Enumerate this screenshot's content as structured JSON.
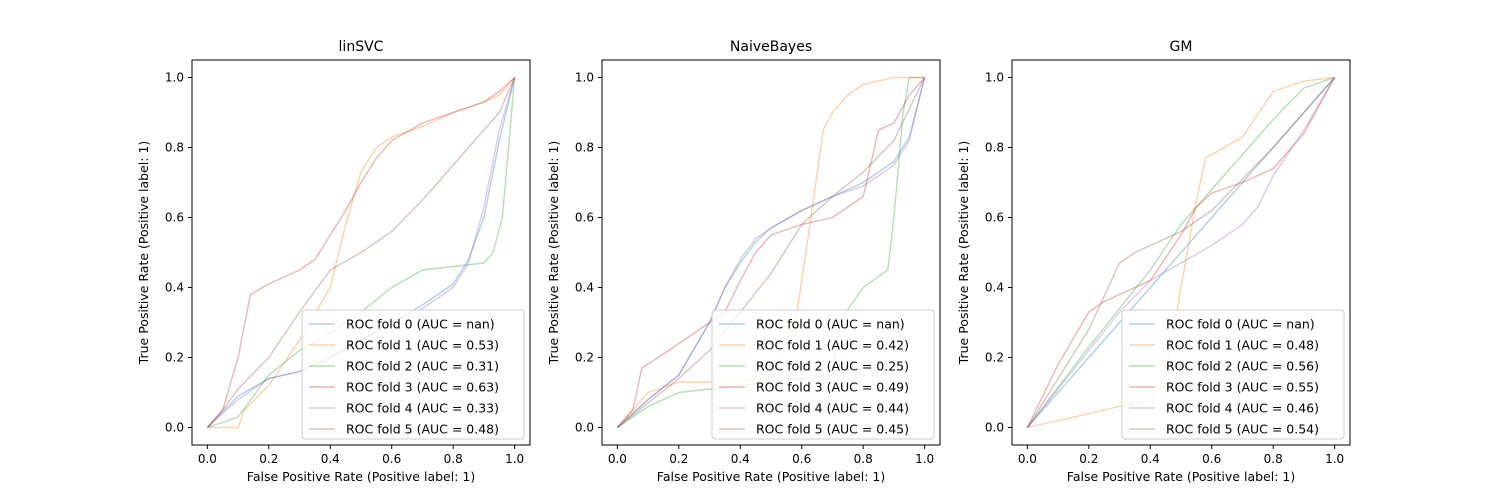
{
  "chart_data": [
    {
      "type": "line",
      "title": "linSVC",
      "xlabel": "False Positive Rate (Positive label: 1)",
      "ylabel": "True Positive Rate (Positive label: 1)",
      "xlim": [
        -0.05,
        1.05
      ],
      "ylim": [
        -0.05,
        1.05
      ],
      "xticks": [
        "0.0",
        "0.2",
        "0.4",
        "0.6",
        "0.8",
        "1.0"
      ],
      "yticks": [
        "0.0",
        "0.2",
        "0.4",
        "0.6",
        "0.8",
        "1.0"
      ],
      "grid": false,
      "legend": "lower right",
      "series": [
        {
          "name": "ROC fold 0 (AUC = nan)",
          "color": "#1f77b4",
          "x": [
            0,
            0.1,
            0.2,
            0.3,
            0.4,
            0.5,
            0.6,
            0.7,
            0.8,
            0.85,
            0.9,
            0.95,
            1.0
          ],
          "y": [
            0,
            0.09,
            0.14,
            0.16,
            0.2,
            0.25,
            0.3,
            0.35,
            0.41,
            0.48,
            0.6,
            0.82,
            1.0
          ]
        },
        {
          "name": "ROC fold 1 (AUC = 0.53)",
          "color": "#ff7f0e",
          "x": [
            0,
            0.1,
            0.12,
            0.2,
            0.3,
            0.4,
            0.45,
            0.5,
            0.55,
            0.6,
            0.7,
            0.8,
            0.9,
            0.95,
            1.0
          ],
          "y": [
            0,
            0.0,
            0.05,
            0.12,
            0.25,
            0.4,
            0.58,
            0.73,
            0.8,
            0.83,
            0.86,
            0.9,
            0.93,
            0.95,
            1.0
          ]
        },
        {
          "name": "ROC fold 2 (AUC = 0.31)",
          "color": "#2ca02c",
          "x": [
            0,
            0.1,
            0.2,
            0.3,
            0.4,
            0.5,
            0.6,
            0.7,
            0.8,
            0.9,
            0.93,
            0.96,
            0.98,
            1.0
          ],
          "y": [
            0,
            0.03,
            0.15,
            0.22,
            0.27,
            0.33,
            0.4,
            0.45,
            0.46,
            0.47,
            0.5,
            0.6,
            0.8,
            1.0
          ]
        },
        {
          "name": "ROC fold 3 (AUC = 0.63)",
          "color": "#d62728",
          "x": [
            0,
            0.05,
            0.1,
            0.14,
            0.2,
            0.3,
            0.35,
            0.4,
            0.45,
            0.5,
            0.55,
            0.6,
            0.7,
            0.8,
            0.9,
            0.95,
            1.0
          ],
          "y": [
            0,
            0.05,
            0.2,
            0.38,
            0.41,
            0.45,
            0.48,
            0.55,
            0.62,
            0.7,
            0.77,
            0.82,
            0.87,
            0.9,
            0.93,
            0.96,
            1.0
          ]
        },
        {
          "name": "ROC fold 4 (AUC = 0.33)",
          "color": "#9467bd",
          "x": [
            0,
            0.1,
            0.2,
            0.3,
            0.4,
            0.5,
            0.6,
            0.7,
            0.8,
            0.85,
            0.9,
            0.95,
            1.0
          ],
          "y": [
            0,
            0.08,
            0.14,
            0.16,
            0.2,
            0.25,
            0.3,
            0.34,
            0.4,
            0.47,
            0.63,
            0.85,
            1.0
          ]
        },
        {
          "name": "ROC fold 5 (AUC = 0.48)",
          "color": "#8c564b",
          "x": [
            0,
            0.05,
            0.1,
            0.2,
            0.3,
            0.4,
            0.5,
            0.6,
            0.7,
            0.8,
            0.9,
            0.95,
            1.0
          ],
          "y": [
            0,
            0.05,
            0.11,
            0.2,
            0.33,
            0.45,
            0.5,
            0.56,
            0.65,
            0.75,
            0.85,
            0.9,
            1.0
          ]
        }
      ]
    },
    {
      "type": "line",
      "title": "NaiveBayes",
      "xlabel": "False Positive Rate (Positive label: 1)",
      "ylabel": "True Positive Rate (Positive label: 1)",
      "xlim": [
        -0.05,
        1.05
      ],
      "ylim": [
        -0.05,
        1.05
      ],
      "xticks": [
        "0.0",
        "0.2",
        "0.4",
        "0.6",
        "0.8",
        "1.0"
      ],
      "yticks": [
        "0.0",
        "0.2",
        "0.4",
        "0.6",
        "0.8",
        "1.0"
      ],
      "grid": false,
      "legend": "lower right",
      "series": [
        {
          "name": "ROC fold 0 (AUC = nan)",
          "color": "#1f77b4",
          "x": [
            0,
            0.1,
            0.2,
            0.3,
            0.35,
            0.4,
            0.45,
            0.5,
            0.6,
            0.7,
            0.8,
            0.9,
            0.95,
            1.0
          ],
          "y": [
            0,
            0.08,
            0.15,
            0.3,
            0.4,
            0.47,
            0.53,
            0.57,
            0.62,
            0.66,
            0.7,
            0.76,
            0.83,
            1.0
          ]
        },
        {
          "name": "ROC fold 1 (AUC = 0.42)",
          "color": "#ff7f0e",
          "x": [
            0,
            0.1,
            0.2,
            0.3,
            0.5,
            0.58,
            0.63,
            0.67,
            0.7,
            0.75,
            0.8,
            0.85,
            0.9,
            1.0
          ],
          "y": [
            0,
            0.1,
            0.13,
            0.13,
            0.14,
            0.3,
            0.6,
            0.85,
            0.9,
            0.95,
            0.98,
            0.99,
            1.0,
            1.0
          ]
        },
        {
          "name": "ROC fold 2 (AUC = 0.25)",
          "color": "#2ca02c",
          "x": [
            0,
            0.1,
            0.2,
            0.3,
            0.4,
            0.5,
            0.6,
            0.7,
            0.72,
            0.8,
            0.88,
            0.9,
            0.93,
            0.95,
            1.0
          ],
          "y": [
            0,
            0.06,
            0.1,
            0.11,
            0.12,
            0.13,
            0.14,
            0.15,
            0.3,
            0.4,
            0.45,
            0.6,
            0.9,
            1.0,
            1.0
          ]
        },
        {
          "name": "ROC fold 3 (AUC = 0.49)",
          "color": "#d62728",
          "x": [
            0,
            0.05,
            0.08,
            0.15,
            0.25,
            0.35,
            0.4,
            0.45,
            0.5,
            0.6,
            0.7,
            0.8,
            0.85,
            0.9,
            0.95,
            1.0
          ],
          "y": [
            0,
            0.05,
            0.17,
            0.21,
            0.27,
            0.33,
            0.42,
            0.5,
            0.55,
            0.58,
            0.6,
            0.66,
            0.85,
            0.87,
            0.95,
            1.0
          ]
        },
        {
          "name": "ROC fold 4 (AUC = 0.44)",
          "color": "#9467bd",
          "x": [
            0,
            0.1,
            0.2,
            0.3,
            0.35,
            0.4,
            0.45,
            0.5,
            0.6,
            0.7,
            0.8,
            0.9,
            0.95,
            1.0
          ],
          "y": [
            0,
            0.08,
            0.15,
            0.3,
            0.4,
            0.48,
            0.54,
            0.57,
            0.62,
            0.66,
            0.69,
            0.75,
            0.82,
            1.0
          ]
        },
        {
          "name": "ROC fold 5 (AUC = 0.45)",
          "color": "#8c564b",
          "x": [
            0,
            0.1,
            0.2,
            0.3,
            0.4,
            0.5,
            0.6,
            0.7,
            0.8,
            0.9,
            1.0
          ],
          "y": [
            0,
            0.07,
            0.14,
            0.22,
            0.33,
            0.44,
            0.58,
            0.66,
            0.73,
            0.82,
            1.0
          ]
        }
      ]
    },
    {
      "type": "line",
      "title": "GM",
      "xlabel": "False Positive Rate (Positive label: 1)",
      "ylabel": "True Positive Rate (Positive label: 1)",
      "xlim": [
        -0.05,
        1.05
      ],
      "ylim": [
        -0.05,
        1.05
      ],
      "xticks": [
        "0.0",
        "0.2",
        "0.4",
        "0.6",
        "0.8",
        "1.0"
      ],
      "yticks": [
        "0.0",
        "0.2",
        "0.4",
        "0.6",
        "0.8",
        "1.0"
      ],
      "grid": false,
      "legend": "lower right",
      "series": [
        {
          "name": "ROC fold 0 (AUC = nan)",
          "color": "#1f77b4",
          "x": [
            0,
            0.2,
            0.4,
            0.6,
            0.8,
            1.0
          ],
          "y": [
            0,
            0.2,
            0.4,
            0.6,
            0.8,
            1.0
          ]
        },
        {
          "name": "ROC fold 1 (AUC = 0.48)",
          "color": "#ff7f0e",
          "x": [
            0,
            0.1,
            0.2,
            0.3,
            0.4,
            0.45,
            0.5,
            0.55,
            0.58,
            0.6,
            0.7,
            0.8,
            0.9,
            1.0
          ],
          "y": [
            0,
            0.02,
            0.04,
            0.06,
            0.08,
            0.15,
            0.4,
            0.65,
            0.77,
            0.78,
            0.83,
            0.96,
            0.99,
            1.0
          ]
        },
        {
          "name": "ROC fold 2 (AUC = 0.56)",
          "color": "#2ca02c",
          "x": [
            0,
            0.2,
            0.4,
            0.5,
            0.6,
            0.7,
            0.8,
            0.9,
            1.0
          ],
          "y": [
            0,
            0.23,
            0.45,
            0.58,
            0.68,
            0.78,
            0.88,
            0.97,
            1.0
          ]
        },
        {
          "name": "ROC fold 3 (AUC = 0.55)",
          "color": "#d62728",
          "x": [
            0,
            0.1,
            0.2,
            0.25,
            0.3,
            0.4,
            0.5,
            0.55,
            0.6,
            0.7,
            0.8,
            0.9,
            1.0
          ],
          "y": [
            0,
            0.18,
            0.33,
            0.36,
            0.38,
            0.42,
            0.55,
            0.63,
            0.67,
            0.7,
            0.74,
            0.84,
            1.0
          ]
        },
        {
          "name": "ROC fold 4 (AUC = 0.46)",
          "color": "#9467bd",
          "x": [
            0,
            0.2,
            0.3,
            0.4,
            0.5,
            0.6,
            0.7,
            0.75,
            0.8,
            0.9,
            1.0
          ],
          "y": [
            0,
            0.22,
            0.33,
            0.42,
            0.47,
            0.52,
            0.58,
            0.63,
            0.72,
            0.85,
            1.0
          ]
        },
        {
          "name": "ROC fold 5 (AUC = 0.54)",
          "color": "#8c564b",
          "x": [
            0,
            0.2,
            0.3,
            0.35,
            0.4,
            0.5,
            0.6,
            0.7,
            0.8,
            0.9,
            1.0
          ],
          "y": [
            0,
            0.28,
            0.47,
            0.5,
            0.52,
            0.56,
            0.62,
            0.71,
            0.8,
            0.9,
            1.0
          ]
        }
      ]
    }
  ]
}
